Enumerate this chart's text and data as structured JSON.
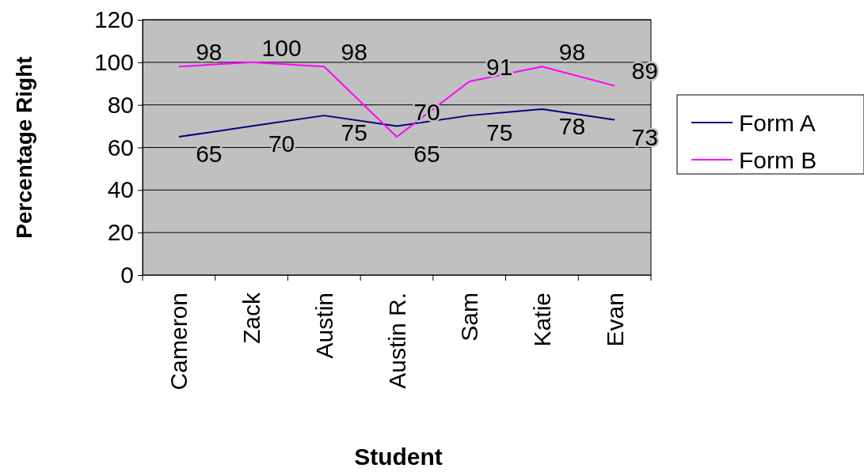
{
  "chart_data": {
    "type": "line",
    "xlabel": "Student",
    "ylabel": "Percentage Right",
    "categories": [
      "Cameron",
      "Zack",
      "Austin",
      "Austin R.",
      "Sam",
      "Katie",
      "Evan"
    ],
    "series": [
      {
        "name": "Form A",
        "color": "#000080",
        "values": [
          65,
          70,
          75,
          70,
          75,
          78,
          73
        ]
      },
      {
        "name": "Form B",
        "color": "#ff00ff",
        "values": [
          98,
          100,
          98,
          65,
          91,
          98,
          89
        ]
      }
    ],
    "ylim": [
      0,
      120
    ],
    "yticks": [
      0,
      20,
      40,
      60,
      80,
      100,
      120
    ],
    "grid": "y",
    "legend": "right",
    "data_labels": true,
    "marker": "none"
  }
}
